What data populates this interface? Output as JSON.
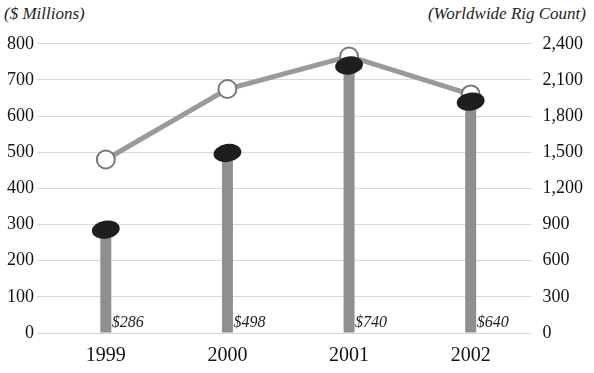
{
  "chart_data": {
    "type": "bar",
    "y_label": "($ Millions)",
    "y2_label": "(Worldwide Rig Count)",
    "categories": [
      "1999",
      "2000",
      "2001",
      "2002"
    ],
    "series": [
      {
        "type": "bar",
        "color": "#8f8f8f",
        "values": [
          286,
          498,
          740,
          640
        ],
        "value_labels": [
          "$286",
          "$498",
          "$740",
          "$640"
        ],
        "data_labels": true
      },
      {
        "type": "line",
        "axis": "y2",
        "color": "#9a9a9a",
        "marker": "circle",
        "values": [
          1440,
          2025,
          2295,
          1980
        ]
      }
    ],
    "ylim": [
      0,
      800
    ],
    "yticks": [
      0,
      100,
      200,
      300,
      400,
      500,
      600,
      700,
      800
    ],
    "y2lim": [
      0,
      2400
    ],
    "y2ticks": [
      0,
      300,
      600,
      900,
      {
        "value": 1200,
        "label": "1,200"
      },
      {
        "value": 1500,
        "label": "1,500"
      },
      {
        "value": 1800,
        "label": "1,800"
      },
      {
        "value": 2100,
        "label": "2,100"
      },
      {
        "value": 2400,
        "label": "2,400"
      }
    ],
    "grid": true
  }
}
